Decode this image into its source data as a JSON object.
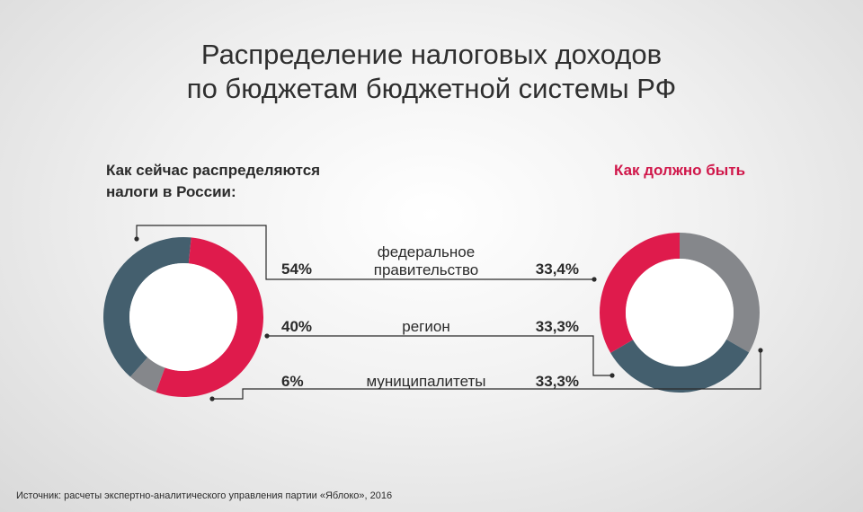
{
  "title": {
    "line1": "Распределение налоговых доходов",
    "line2": "по бюджетам бюджетной системы РФ"
  },
  "left_heading": "Как сейчас распределяются налоги в России:",
  "right_heading": "Как должно быть",
  "source": "Источник: расчеты экспертно-аналитического управления партии «Яблоко», 2016",
  "colors": {
    "federal": "#df1b4c",
    "region": "#445f6e",
    "municipal": "#85878b",
    "accent_text": "#d0174a",
    "lines": "#2b2b2b"
  },
  "chart_data": [
    {
      "type": "pie",
      "title": "Как сейчас распределяются налоги в России:",
      "categories": [
        "федеральное правительство",
        "регион",
        "муниципалитеты"
      ],
      "values": [
        54,
        40,
        6
      ],
      "value_labels": [
        "54%",
        "40%",
        "6%"
      ]
    },
    {
      "type": "pie",
      "title": "Как должно быть",
      "categories": [
        "федеральное правительство",
        "регион",
        "муниципалитеты"
      ],
      "values": [
        33.4,
        33.3,
        33.3
      ],
      "value_labels": [
        "33,4%",
        "33,3%",
        "33,3%"
      ]
    }
  ],
  "rows": [
    {
      "left": "54%",
      "label_lines": [
        "федеральное",
        "правительство"
      ],
      "right": "33,4%"
    },
    {
      "left": "40%",
      "label_lines": [
        "регион"
      ],
      "right": "33,3%"
    },
    {
      "left": "6%",
      "label_lines": [
        "муниципалитеты"
      ],
      "right": "33,3%"
    }
  ]
}
